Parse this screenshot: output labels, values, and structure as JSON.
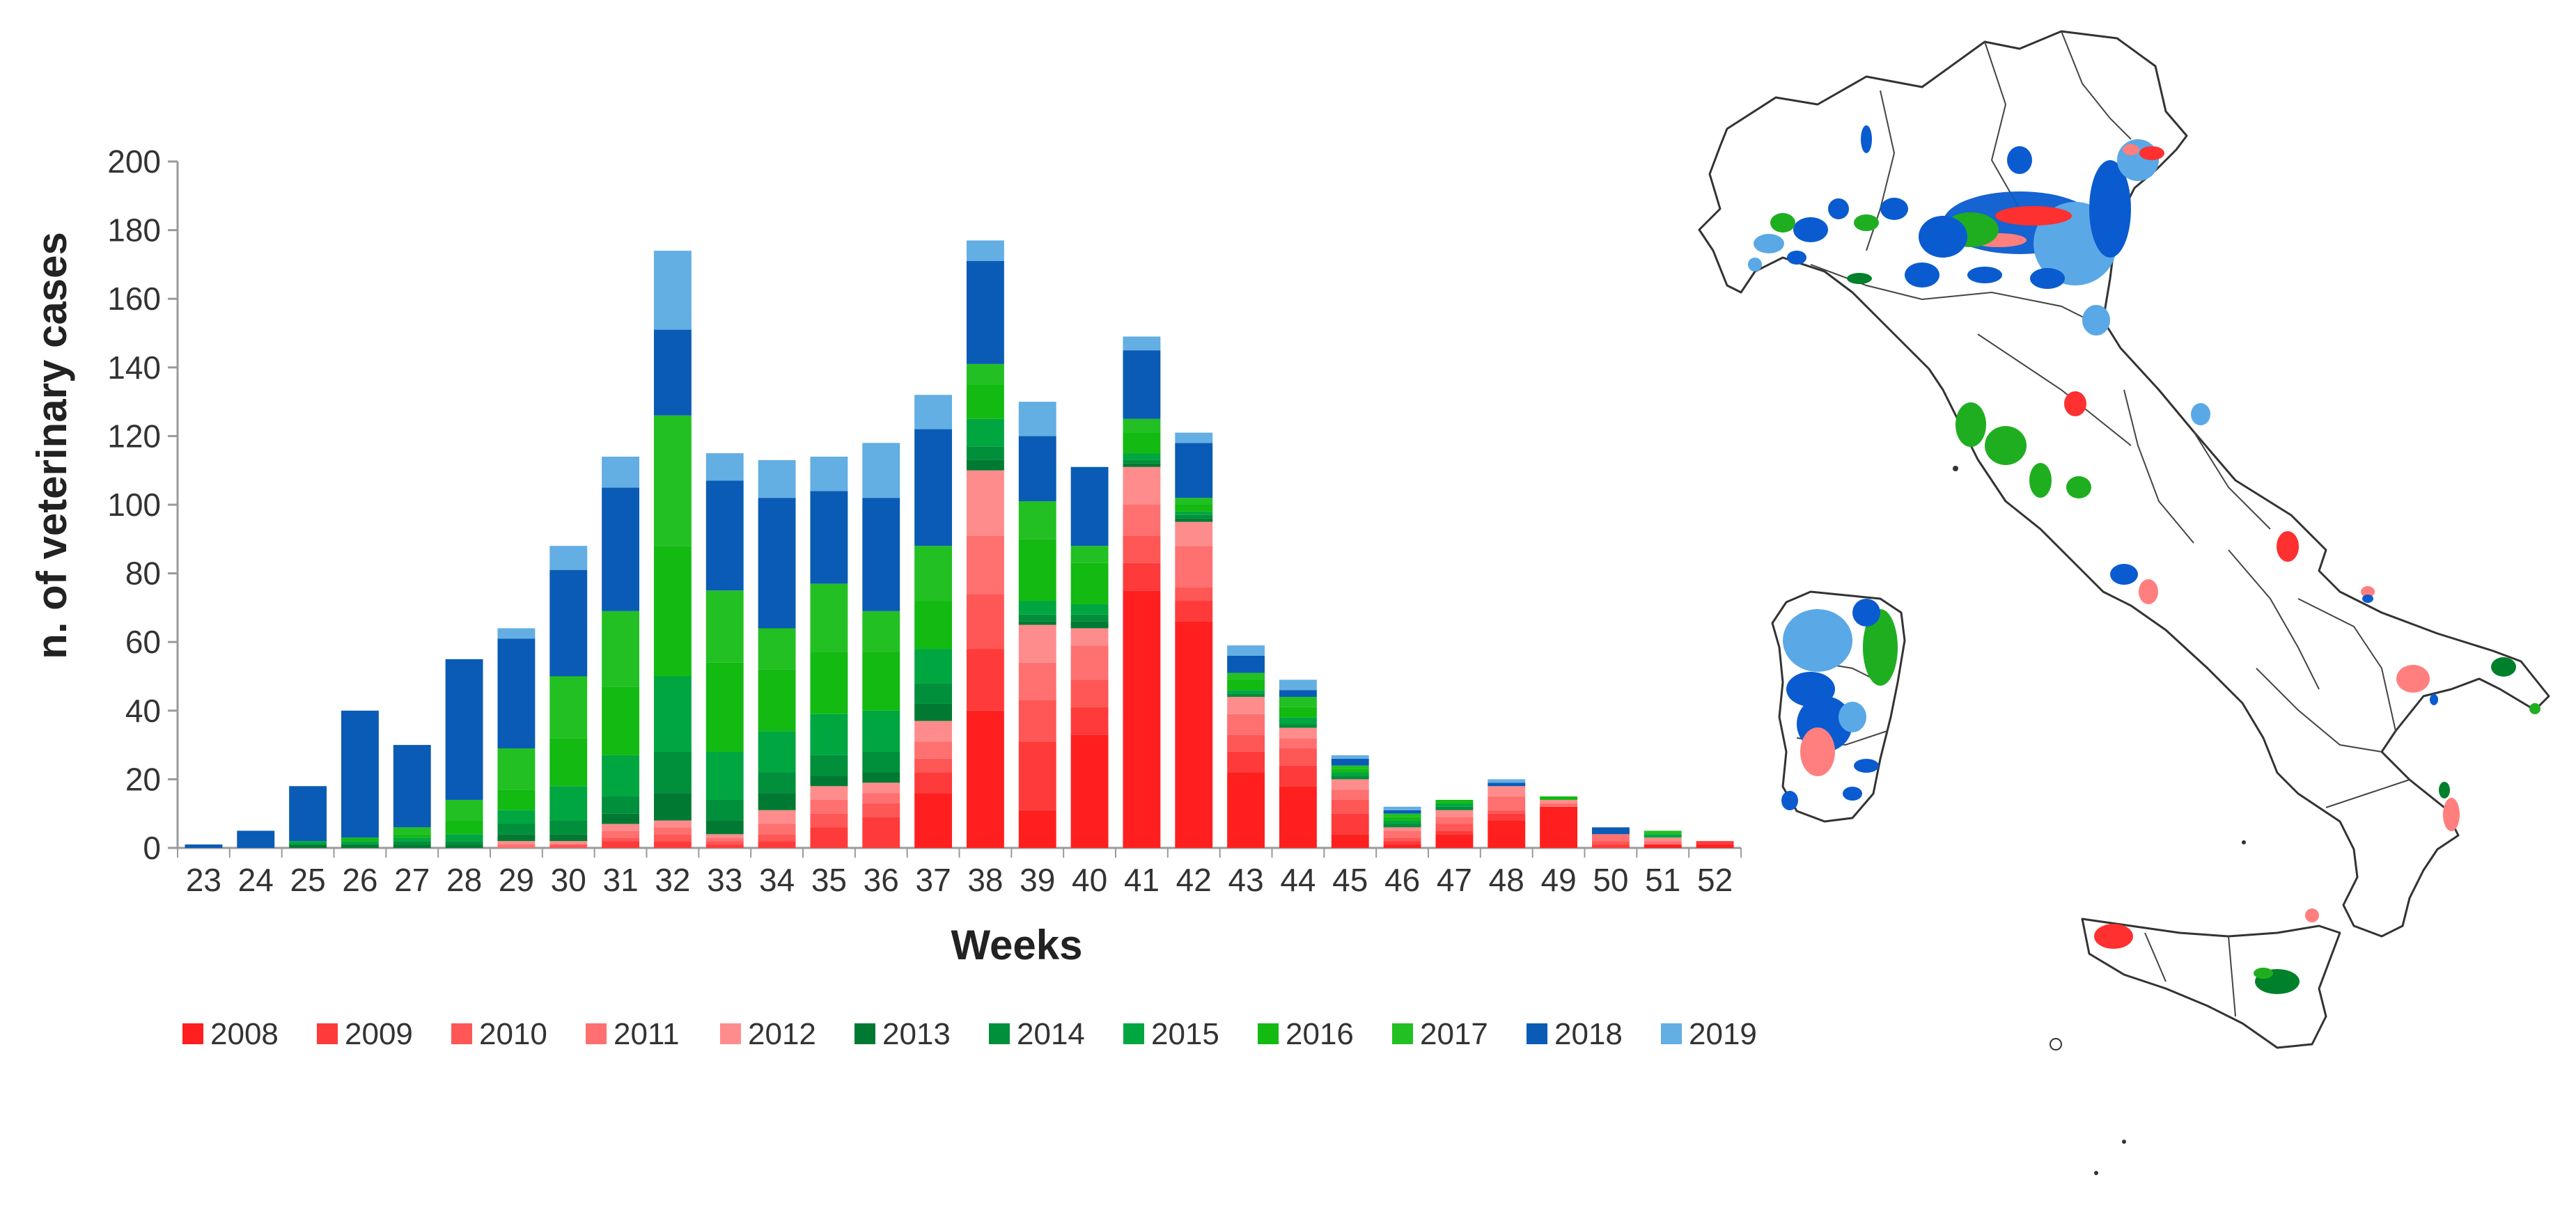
{
  "chart_data": {
    "type": "bar",
    "stacked": true,
    "title": "",
    "xlabel": "Weeks",
    "ylabel": "n. of veterinary cases",
    "ylim": [
      0,
      200
    ],
    "yticks": [
      0,
      20,
      40,
      60,
      80,
      100,
      120,
      140,
      160,
      180,
      200
    ],
    "grid": false,
    "legend_position": "bottom",
    "categories": [
      "23",
      "24",
      "25",
      "26",
      "27",
      "28",
      "29",
      "30",
      "31",
      "32",
      "33",
      "34",
      "35",
      "36",
      "37",
      "38",
      "39",
      "40",
      "41",
      "42",
      "43",
      "44",
      "45",
      "46",
      "47",
      "48",
      "49",
      "50",
      "51",
      "52"
    ],
    "series": [
      {
        "name": "2008",
        "color": "#FF1F1F",
        "values": [
          0,
          0,
          0,
          0,
          0,
          0,
          0,
          0,
          0,
          0,
          0,
          0,
          0,
          0,
          16,
          40,
          11,
          33,
          75,
          66,
          22,
          18,
          4,
          1,
          4,
          8,
          12,
          0,
          1,
          1
        ]
      },
      {
        "name": "2009",
        "color": "#FF3A3A",
        "values": [
          0,
          0,
          0,
          0,
          0,
          0,
          0,
          0,
          2,
          2,
          1,
          2,
          6,
          9,
          6,
          18,
          20,
          8,
          8,
          6,
          6,
          6,
          6,
          1,
          1,
          2,
          0,
          1,
          0,
          1
        ]
      },
      {
        "name": "2010",
        "color": "#FF5656",
        "values": [
          0,
          0,
          0,
          0,
          0,
          0,
          0,
          1,
          1,
          2,
          1,
          2,
          4,
          4,
          4,
          16,
          12,
          8,
          8,
          4,
          5,
          5,
          4,
          1,
          2,
          1,
          0,
          1,
          0,
          0
        ]
      },
      {
        "name": "2011",
        "color": "#FF7070",
        "values": [
          0,
          0,
          0,
          0,
          0,
          0,
          1,
          0,
          2,
          2,
          1,
          3,
          4,
          3,
          5,
          17,
          11,
          10,
          9,
          12,
          6,
          3,
          3,
          2,
          2,
          4,
          1,
          2,
          1,
          0
        ]
      },
      {
        "name": "2012",
        "color": "#FF8C8C",
        "values": [
          0,
          0,
          0,
          0,
          0,
          0,
          1,
          1,
          2,
          2,
          1,
          4,
          4,
          3,
          6,
          19,
          11,
          5,
          11,
          7,
          5,
          3,
          3,
          1,
          2,
          3,
          1,
          0,
          1,
          0
        ]
      },
      {
        "name": "2013",
        "color": "#007A33",
        "values": [
          0,
          0,
          1,
          1,
          1,
          1,
          2,
          2,
          3,
          8,
          4,
          5,
          3,
          3,
          5,
          3,
          1,
          2,
          1,
          1,
          0,
          0,
          0,
          0,
          0,
          0,
          0,
          0,
          0,
          0
        ]
      },
      {
        "name": "2014",
        "color": "#008F3A",
        "values": [
          0,
          0,
          0,
          0,
          1,
          1,
          3,
          4,
          5,
          12,
          6,
          6,
          6,
          6,
          6,
          4,
          2,
          2,
          1,
          1,
          1,
          1,
          1,
          1,
          1,
          0,
          0,
          0,
          0,
          0
        ]
      },
      {
        "name": "2015",
        "color": "#00A640",
        "values": [
          0,
          0,
          1,
          1,
          1,
          2,
          4,
          10,
          12,
          22,
          14,
          12,
          12,
          12,
          10,
          8,
          4,
          3,
          2,
          1,
          1,
          2,
          1,
          1,
          1,
          0,
          0,
          0,
          1,
          0
        ]
      },
      {
        "name": "2016",
        "color": "#12BA12",
        "values": [
          0,
          0,
          0,
          1,
          1,
          4,
          6,
          14,
          20,
          38,
          26,
          18,
          18,
          17,
          14,
          10,
          18,
          12,
          6,
          2,
          3,
          3,
          1,
          1,
          1,
          0,
          1,
          0,
          0,
          0
        ]
      },
      {
        "name": "2017",
        "color": "#22C022",
        "values": [
          0,
          0,
          0,
          0,
          2,
          6,
          12,
          18,
          22,
          38,
          21,
          12,
          20,
          12,
          16,
          6,
          11,
          5,
          4,
          2,
          2,
          3,
          1,
          1,
          0,
          0,
          0,
          0,
          1,
          0
        ]
      },
      {
        "name": "2018",
        "color": "#0A5BB5",
        "values": [
          1,
          5,
          16,
          37,
          24,
          41,
          32,
          31,
          36,
          25,
          32,
          38,
          27,
          33,
          34,
          30,
          19,
          23,
          20,
          16,
          5,
          2,
          2,
          1,
          0,
          1,
          0,
          2,
          0,
          0
        ]
      },
      {
        "name": "2019",
        "color": "#63AEE3",
        "values": [
          0,
          0,
          0,
          0,
          0,
          0,
          3,
          7,
          9,
          23,
          8,
          11,
          10,
          16,
          10,
          6,
          10,
          0,
          4,
          3,
          3,
          3,
          1,
          1,
          0,
          1,
          0,
          0,
          0,
          0
        ]
      }
    ]
  },
  "map": {
    "colors": {
      "outline": "#333333",
      "red": "#FF3030",
      "pink": "#FF7F7F",
      "green": "#1FAE1F",
      "darkgreen": "#00802A",
      "blue": "#0A5BD0",
      "lightblue": "#5AA8E6"
    }
  }
}
